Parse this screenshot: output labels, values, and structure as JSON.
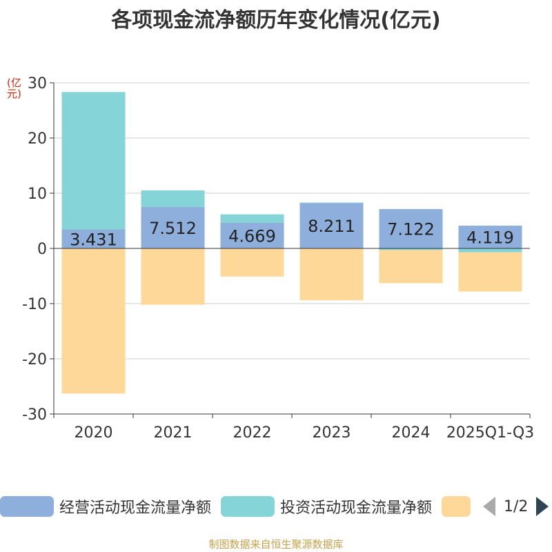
{
  "title": "各项现金流净额历年变化情况(亿元)",
  "unit_label": "(亿元)",
  "legend": {
    "items": [
      {
        "label": "经营活动现金流量净额",
        "color": "#8eaedb"
      },
      {
        "label": "投资活动现金流量净额",
        "color": "#84d4d8"
      },
      {
        "label": "",
        "color": "#fdd898"
      }
    ],
    "page_text": "1/2"
  },
  "footer": "制图数据来自恒生聚源数据库",
  "chart_data": {
    "type": "bar",
    "stacked": true,
    "title": "各项现金流净额历年变化情况(亿元)",
    "ylabel": "(亿元)",
    "ylim": [
      -30,
      30
    ],
    "yticks": [
      -30,
      -20,
      -10,
      0,
      10,
      20,
      30
    ],
    "grid": true,
    "categories": [
      "2020",
      "2021",
      "2022",
      "2023",
      "2024",
      "2025Q1-Q3"
    ],
    "series": [
      {
        "name": "经营活动现金流量净额",
        "color": "#8eaedb",
        "values": [
          3.431,
          7.512,
          4.669,
          8.211,
          7.122,
          4.119
        ]
      },
      {
        "name": "投资活动现金流量净额",
        "color": "#84d4d8",
        "values": [
          24.9,
          3.0,
          1.5,
          0.1,
          -0.3,
          -0.7
        ]
      },
      {
        "name": "",
        "color": "#fdd898",
        "values": [
          -26.3,
          -10.2,
          -5.1,
          -9.4,
          -6.0,
          -7.1
        ]
      }
    ],
    "data_labels": [
      "3.431",
      "7.512",
      "4.669",
      "8.211",
      "7.122",
      "4.119"
    ]
  }
}
